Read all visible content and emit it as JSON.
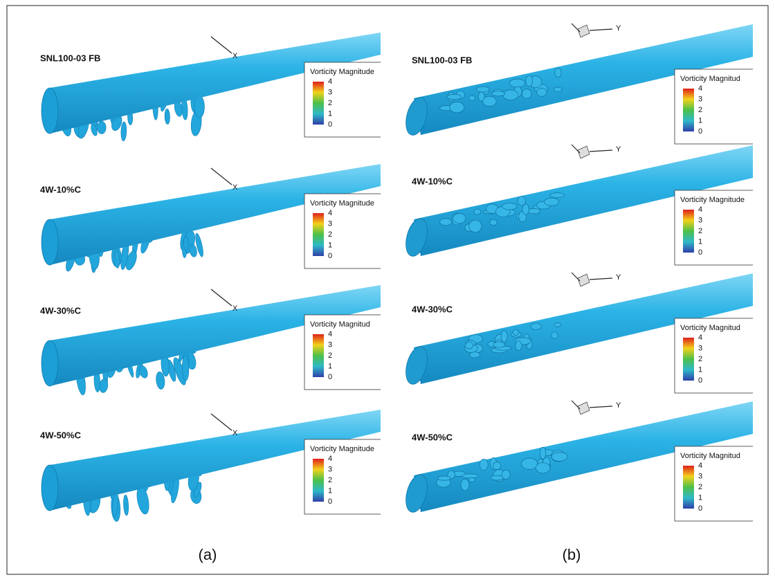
{
  "panels": [
    {
      "caption": "(a)",
      "subplots": [
        {
          "label": "SNL100-03 FB",
          "axis_label": "X",
          "legend_title": "Vorticity Magnitude",
          "legend_ticks": [
            4,
            3,
            2,
            1,
            0
          ]
        },
        {
          "label": "4W-10%C",
          "axis_label": "X",
          "legend_title": "Vorticity Magnitude",
          "legend_ticks": [
            4,
            3,
            2,
            1,
            0
          ]
        },
        {
          "label": "4W-30%C",
          "axis_label": "X",
          "legend_title": "Vorticity Magnitud",
          "legend_ticks": [
            4,
            3,
            2,
            1,
            0
          ]
        },
        {
          "label": "4W-50%C",
          "axis_label": "X",
          "legend_title": "Vorticity Magnitude",
          "legend_ticks": [
            4,
            3,
            2,
            1,
            0
          ]
        }
      ]
    },
    {
      "caption": "(b)",
      "subplots": [
        {
          "label": "SNL100-03 FB",
          "axis_label": "Y",
          "legend_title": "Vorticity Magnitud",
          "legend_ticks": [
            4,
            3,
            2,
            1,
            0
          ]
        },
        {
          "label": "4W-10%C",
          "axis_label": "Y",
          "legend_title": "Vorticity Magnitude",
          "legend_ticks": [
            4,
            3,
            2,
            1,
            0
          ]
        },
        {
          "label": "4W-30%C",
          "axis_label": "Y",
          "legend_title": "Vorticity Magnitud",
          "legend_ticks": [
            4,
            3,
            2,
            1,
            0
          ]
        },
        {
          "label": "4W-50%C",
          "axis_label": "Y",
          "legend_title": "Vorticity Magnitud",
          "legend_ticks": [
            4,
            3,
            2,
            1,
            0
          ]
        }
      ]
    }
  ]
}
